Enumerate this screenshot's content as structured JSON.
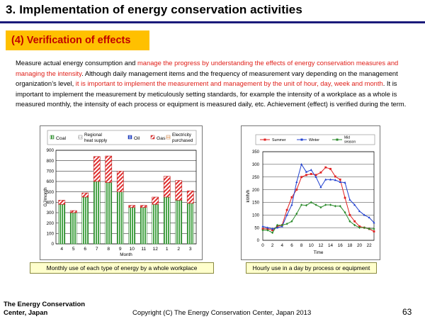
{
  "slide": {
    "title": "3. Implementation of energy conservation activities",
    "section": "(4) Verification of effects",
    "body": [
      {
        "t": "Measure actual energy consumption and ",
        "red": false
      },
      {
        "t": "manage the progress by understanding the effects of energy conservation measures and managing the intensity",
        "red": true
      },
      {
        "t": ". Although daily management items and the frequency of measurement vary depending on the management organization’s level, ",
        "red": false
      },
      {
        "t": "it is important to implement the measurement and management by the unit of hour, day, week and month",
        "red": true
      },
      {
        "t": ". It is important to implement the measurement by meticulously setting standards, for example the intensity of a workplace as a whole is measured monthly, the intensity of each process or equipment is measured daily, etc. Achievement (effect) is verified during the term.",
        "red": false
      }
    ],
    "caption_left": "Monthly use of each type of energy by a whole workplace",
    "caption_right": "Hourly use in a day by process or equipment",
    "footer_org_line1": "The Energy Conservation",
    "footer_org_line2": "Center, Japan",
    "copyright": "Copyright (C) The Energy Conservation Center, Japan 2013",
    "page_number": "63"
  },
  "colors": {
    "title_rule": "#1b1b7a",
    "section_bg": "#ffc000",
    "section_text": "#c00000",
    "highlight": "#e0201a"
  },
  "chart_data": [
    {
      "type": "bar",
      "stacked": true,
      "xlabel": "Month",
      "ylabel": "GJ/month",
      "ylim": [
        0,
        900
      ],
      "yticks": [
        0,
        100,
        200,
        300,
        400,
        500,
        600,
        700,
        800,
        900
      ],
      "categories": [
        "4",
        "5",
        "6",
        "7",
        "8",
        "9",
        "10",
        "11",
        "12",
        "1",
        "2",
        "3"
      ],
      "series": [
        {
          "name": "Coal",
          "color": "#4aa54a",
          "values": [
            380,
            300,
            450,
            600,
            590,
            500,
            350,
            350,
            380,
            450,
            420,
            390
          ]
        },
        {
          "name": "Regional heat supply",
          "color": "#bbbbbb",
          "values": [
            0,
            0,
            0,
            0,
            0,
            0,
            0,
            0,
            0,
            0,
            0,
            0
          ]
        },
        {
          "name": "Oil",
          "color": "#3355cc",
          "values": [
            0,
            0,
            0,
            0,
            0,
            0,
            0,
            0,
            0,
            0,
            0,
            0
          ]
        },
        {
          "name": "Gas",
          "color": "#e03030",
          "values": [
            40,
            20,
            40,
            240,
            255,
            200,
            20,
            20,
            70,
            200,
            190,
            120
          ]
        },
        {
          "name": "Electricity purchased",
          "color": "#e8a060",
          "values": [
            0,
            0,
            0,
            0,
            0,
            0,
            0,
            0,
            0,
            0,
            0,
            0
          ]
        }
      ],
      "legend_labels": [
        "Coal",
        "Regional heat supply",
        "Oil",
        "Gas",
        "Electricity purchased"
      ]
    },
    {
      "type": "line",
      "xlabel": "Time",
      "ylabel": "kWh/h",
      "ylim": [
        0,
        350
      ],
      "yticks": [
        0,
        50,
        100,
        150,
        200,
        250,
        300,
        350
      ],
      "xlim": [
        0,
        23
      ],
      "xticks": [
        0,
        2,
        4,
        6,
        8,
        10,
        12,
        14,
        16,
        18,
        20,
        22
      ],
      "x": [
        0,
        1,
        2,
        3,
        4,
        5,
        6,
        7,
        8,
        9,
        10,
        11,
        12,
        13,
        14,
        15,
        16,
        17,
        18,
        19,
        20,
        21,
        22,
        23
      ],
      "series": [
        {
          "name": "Summer",
          "color": "#e02020",
          "marker": "square",
          "values": [
            45,
            45,
            40,
            55,
            60,
            120,
            170,
            200,
            250,
            258,
            262,
            258,
            268,
            288,
            282,
            252,
            240,
            168,
            100,
            75,
            55,
            50,
            45,
            35
          ]
        },
        {
          "name": "Winter",
          "color": "#2040d0",
          "marker": "triangle",
          "values": [
            55,
            50,
            45,
            50,
            55,
            100,
            140,
            230,
            300,
            270,
            278,
            250,
            210,
            240,
            240,
            238,
            230,
            228,
            160,
            140,
            115,
            100,
            90,
            70
          ]
        },
        {
          "name": "Mid season",
          "color": "#2a8a2a",
          "marker": "diamond",
          "values": [
            40,
            40,
            30,
            60,
            60,
            65,
            75,
            105,
            140,
            138,
            150,
            140,
            130,
            140,
            140,
            135,
            135,
            110,
            75,
            60,
            50,
            50,
            45,
            45
          ]
        }
      ],
      "legend_labels": [
        "Summer",
        "Winter",
        "Mid season"
      ]
    }
  ]
}
